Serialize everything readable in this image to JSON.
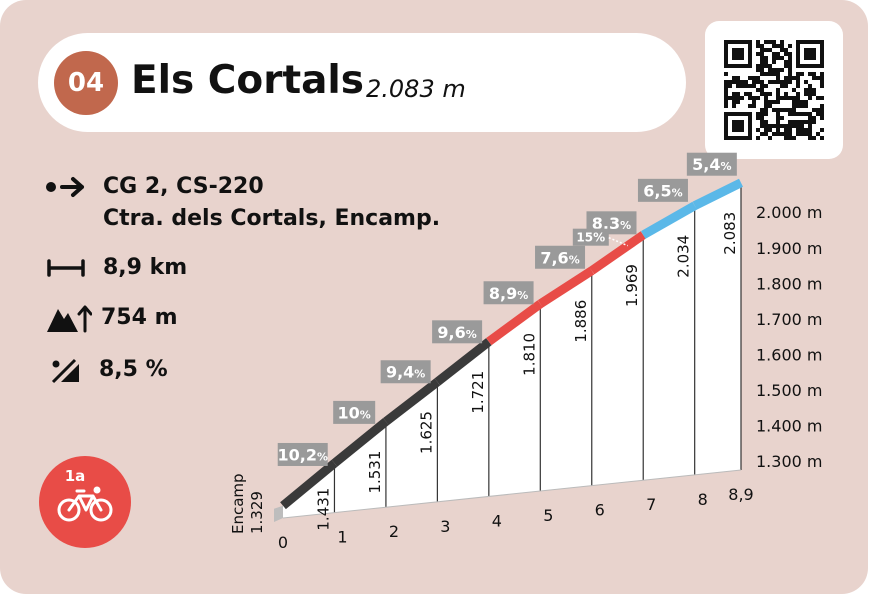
{
  "header": {
    "number": "04",
    "title": "Els Cortals",
    "altitude": "2.083 m"
  },
  "info": {
    "start_line1": "CG 2, CS-220",
    "start_line2": "Ctra. dels Cortals, Encamp.",
    "distance": "8,9 km",
    "elevation_gain": "754 m",
    "avg_gradient": "8,5 %"
  },
  "badge": {
    "label": "1a",
    "icon": "bicycle-icon"
  },
  "icons": {
    "start": "arrow-right-icon",
    "distance": "distance-icon",
    "elevation": "mountain-icon",
    "gradient": "gradient-icon",
    "qr": "qr-code-icon"
  },
  "colors": {
    "background": "#e8d3cd",
    "badge_number": "#c1684d",
    "badge_category": "#e84c47",
    "segment_dark": "#3a3a3a",
    "segment_red": "#e84c47",
    "segment_blue": "#5bb8e8",
    "label_box": "#9a9a9a"
  },
  "chart_data": {
    "type": "area",
    "x": [
      0,
      1,
      2,
      3,
      4,
      5,
      6,
      7,
      8,
      8.9
    ],
    "altitudes": [
      1329,
      1431,
      1531,
      1625,
      1721,
      1810,
      1886,
      1969,
      2034,
      2083
    ],
    "altitude_labels": [
      "1.329",
      "1.431",
      "1.531",
      "1.625",
      "1.721",
      "1.810",
      "1.886",
      "1.969",
      "2.034",
      "2.083"
    ],
    "x_tick_labels": [
      "0",
      "1",
      "2",
      "3",
      "4",
      "5",
      "6",
      "7",
      "8",
      "8,9"
    ],
    "start_label": "Encamp",
    "y_tick_values": [
      1300,
      1400,
      1500,
      1600,
      1700,
      1800,
      1900,
      2000
    ],
    "y_tick_labels": [
      "1.300 m",
      "1.400 m",
      "1.500 m",
      "1.600 m",
      "1.700 m",
      "1.800 m",
      "1.900 m",
      "2.000 m"
    ],
    "ylim": [
      1300,
      2000
    ],
    "segments": [
      {
        "start": 0,
        "end": 1,
        "gradient": "10,2",
        "color": "dark"
      },
      {
        "start": 1,
        "end": 2,
        "gradient": "10",
        "color": "dark"
      },
      {
        "start": 2,
        "end": 3,
        "gradient": "9,4",
        "color": "dark"
      },
      {
        "start": 3,
        "end": 4,
        "gradient": "9,6",
        "color": "dark"
      },
      {
        "start": 4,
        "end": 5,
        "gradient": "8,9",
        "color": "red"
      },
      {
        "start": 5,
        "end": 6,
        "gradient": "7,6",
        "color": "red"
      },
      {
        "start": 6,
        "end": 7,
        "gradient": "8,3",
        "color": "red"
      },
      {
        "start": 7,
        "end": 8,
        "gradient": "6,5",
        "color": "blue"
      },
      {
        "start": 8,
        "end": 8.9,
        "gradient": "5,4",
        "color": "blue"
      }
    ],
    "percent_sign": "%",
    "max_gradient_label": "15%",
    "max_gradient_km": 6.7
  }
}
